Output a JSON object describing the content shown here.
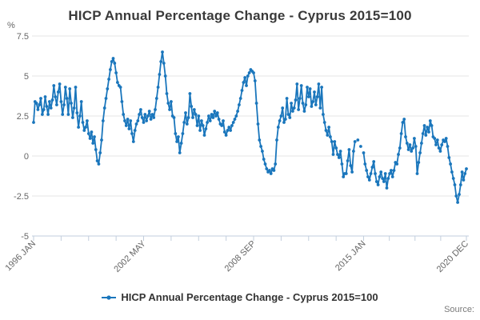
{
  "title": "HICP Annual Percentage Change - Cyprus 2015=100",
  "y_axis": {
    "unit_label": "%",
    "ticks": [
      7.5,
      5,
      2.5,
      0,
      -2.5,
      -5
    ],
    "min": -5,
    "max": 7.5
  },
  "x_axis": {
    "labeled_ticks": [
      {
        "month_index": 0,
        "label": "1996 JAN"
      },
      {
        "month_index": 76,
        "label": "2002 MAY"
      },
      {
        "month_index": 152,
        "label": "2008 SEP"
      },
      {
        "month_index": 228,
        "label": "2015 JAN"
      },
      {
        "month_index": 299,
        "label": "2020 DEC"
      }
    ],
    "minor_tick_months": [
      19,
      38,
      57,
      95,
      114,
      133,
      171,
      190,
      209,
      245.75,
      263.5,
      281.25
    ]
  },
  "legend": {
    "label": "HICP Annual Percentage Change - Cyprus 2015=100"
  },
  "source_label": "Source:",
  "colors": {
    "line": "#1a76bc",
    "grid": "#e6e6e6",
    "axis": "#c2cedd",
    "tick_text": "#666666",
    "title_text": "#3a3a3a"
  },
  "chart_data": {
    "type": "line",
    "title": "HICP Annual Percentage Change - Cyprus 2015=100",
    "xlabel": "",
    "ylabel": "%",
    "ylim": [
      -5,
      7.5
    ],
    "grid": "horizontal",
    "legend_position": "bottom",
    "x_start": "1996-01",
    "x_end": "2020-12",
    "frequency": "monthly",
    "series": [
      {
        "name": "HICP Annual Percentage Change - Cyprus 2015=100",
        "marker": "circle",
        "values": [
          2.1,
          3.4,
          3.3,
          2.9,
          3.2,
          3.6,
          2.6,
          2.9,
          3.7,
          3.1,
          2.6,
          3.4,
          3.0,
          3.5,
          4.4,
          3.7,
          3.2,
          4.0,
          4.5,
          3.4,
          2.6,
          3.2,
          4.3,
          3.6,
          2.6,
          4.2,
          3.3,
          2.4,
          3.0,
          4.3,
          2.7,
          1.8,
          2.5,
          3.4,
          2.1,
          1.6,
          1.8,
          2.2,
          1.4,
          1.1,
          1.5,
          0.8,
          1.2,
          0.4,
          -0.3,
          -0.5,
          0.2,
          1.0,
          2.2,
          3.0,
          3.6,
          4.2,
          4.8,
          5.4,
          5.9,
          6.1,
          5.8,
          5.2,
          4.6,
          4.4,
          4.3,
          3.4,
          2.6,
          2.2,
          1.9,
          2.3,
          1.7,
          2.2,
          1.4,
          0.9,
          1.6,
          2.0,
          2.2,
          2.6,
          2.9,
          2.4,
          2.1,
          2.6,
          2.2,
          2.5,
          2.8,
          2.3,
          2.6,
          2.4,
          2.9,
          3.6,
          4.3,
          5.1,
          5.9,
          6.5,
          5.8,
          5.0,
          3.9,
          3.3,
          2.9,
          3.4,
          2.5,
          2.4,
          1.4,
          0.9,
          1.2,
          0.2,
          0.8,
          1.4,
          2.1,
          2.7,
          2.0,
          2.4,
          3.9,
          3.1,
          2.4,
          2.9,
          2.6,
          1.9,
          2.5,
          1.6,
          2.2,
          1.9,
          1.3,
          1.7,
          2.1,
          2.5,
          2.2,
          2.6,
          2.4,
          2.8,
          2.5,
          2.7,
          2.3,
          2.0,
          1.9,
          2.2,
          1.5,
          1.3,
          1.6,
          1.8,
          1.6,
          1.9,
          2.1,
          2.3,
          2.5,
          2.8,
          3.2,
          3.6,
          4.1,
          4.6,
          4.9,
          4.4,
          5.0,
          5.2,
          5.4,
          5.3,
          5.2,
          4.7,
          3.3,
          2.0,
          1.0,
          0.6,
          0.3,
          -0.2,
          -0.5,
          -0.8,
          -1.0,
          -0.9,
          -1.1,
          -0.8,
          -0.9,
          -0.5,
          1.0,
          1.8,
          2.2,
          2.5,
          3.0,
          2.1,
          2.3,
          3.6,
          2.6,
          2.4,
          3.3,
          2.8,
          3.0,
          3.5,
          4.5,
          2.9,
          3.6,
          4.4,
          3.3,
          2.8,
          3.2,
          4.3,
          3.7,
          4.2,
          3.1,
          3.4,
          4.0,
          3.2,
          3.7,
          4.5,
          3.0,
          4.3,
          2.6,
          2.1,
          1.6,
          1.3,
          1.8,
          1.2,
          0.9,
          0.1,
          0.9,
          0.5,
          0.1,
          -0.1,
          0.3,
          -0.5,
          -1.3,
          -1.1,
          -1.1,
          -0.3,
          0.4,
          -0.6,
          -1.0,
          0.3,
          0.9,
          null,
          1.0,
          null,
          0.6,
          null,
          0.2,
          -0.5,
          -0.9,
          -1.3,
          -1.5,
          -1.1,
          -0.7,
          -0.35,
          -1.1,
          -1.6,
          -1.8,
          -1.3,
          -1.0,
          -1.4,
          -1.6,
          -1.1,
          -2.0,
          -1.4,
          -1.1,
          -0.9,
          -1.3,
          -0.9,
          -0.4,
          -0.5,
          0.1,
          0.5,
          1.4,
          2.1,
          2.3,
          1.2,
          0.8,
          0.4,
          0.7,
          0.3,
          0.5,
          1.1,
          0.6,
          -1.1,
          -0.4,
          0.2,
          0.8,
          1.4,
          1.9,
          1.3,
          1.8,
          1.5,
          2.2,
          1.9,
          1.2,
          1.1,
          0.7,
          1.0,
          0.5,
          0.3,
          0.7,
          1.0,
          0.9,
          1.1,
          0.6,
          -0.1,
          -0.5,
          -1.0,
          -1.4,
          -1.8,
          -2.5,
          -2.9,
          -2.4,
          -1.8,
          -1.0,
          -1.5,
          -1.1,
          -0.8
        ]
      }
    ]
  }
}
